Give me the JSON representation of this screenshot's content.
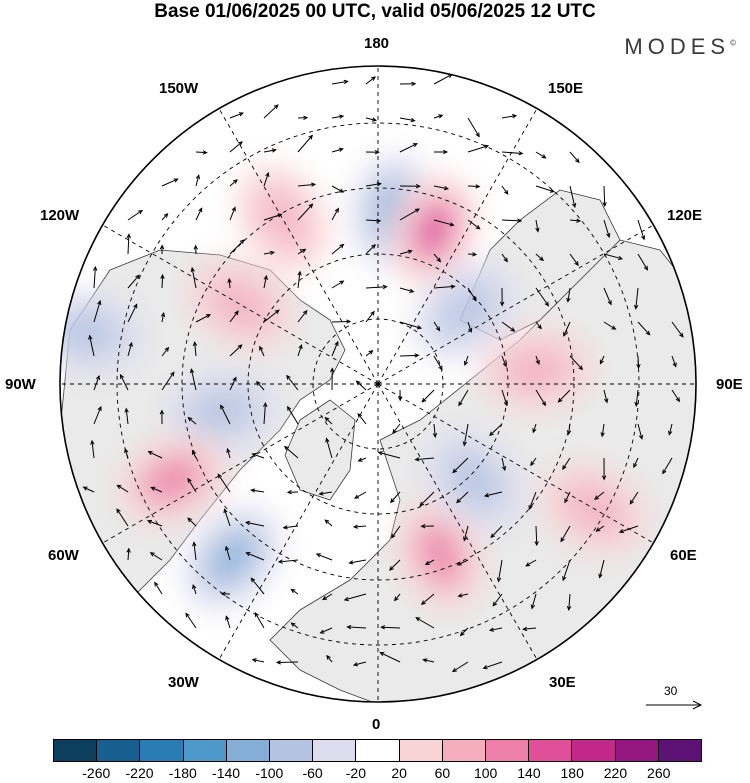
{
  "title": "Base 01/06/2025 00 UTC, valid 05/06/2025 12 UTC",
  "brand": "MODES",
  "brand_mark": "©",
  "longitude_labels": {
    "top": "180",
    "bottom": "0",
    "left": "90W",
    "right": "90E",
    "upper_left_inner": "150W",
    "upper_left_outer": "120W",
    "upper_right_inner": "150E",
    "upper_right_outer": "120E",
    "lower_left_outer": "60W",
    "lower_left_inner": "30W",
    "lower_right_outer": "60E",
    "lower_right_inner": "30E"
  },
  "reference_vector": {
    "value": "30"
  },
  "colorbar": {
    "colors": [
      "#0c3e5e",
      "#175f8e",
      "#2a7cb5",
      "#4e98c9",
      "#86afd8",
      "#b4c3e2",
      "#dcdcef",
      "#ffffff",
      "#f9d4d6",
      "#f4aebd",
      "#ee7fa8",
      "#e04f98",
      "#c2278a",
      "#941780",
      "#5e1174"
    ],
    "ticks": [
      "-260",
      "-220",
      "-180",
      "-140",
      "-100",
      "-60",
      "-20",
      "20",
      "60",
      "100",
      "140",
      "180",
      "220",
      "260"
    ]
  },
  "colors": {
    "land": "#eaeaea",
    "ocean": "#ffffff",
    "frame": "#000000"
  },
  "anomaly_blobs": [
    {
      "lon": 175,
      "lat": 52,
      "level": 2,
      "sign": -1
    },
    {
      "lon": 160,
      "lat": 54,
      "level": 3,
      "sign": 1
    },
    {
      "lon": -150,
      "lat": 48,
      "level": 1,
      "sign": 1
    },
    {
      "lon": -120,
      "lat": 55,
      "level": 1,
      "sign": 1
    },
    {
      "lon": -80,
      "lat": 55,
      "level": 1,
      "sign": -1
    },
    {
      "lon": -65,
      "lat": 40,
      "level": 2,
      "sign": 1
    },
    {
      "lon": -40,
      "lat": 40,
      "level": 2,
      "sign": -1
    },
    {
      "lon": 20,
      "lat": 50,
      "level": 2,
      "sign": 1
    },
    {
      "lon": 45,
      "lat": 60,
      "level": 1,
      "sign": -1
    },
    {
      "lon": 95,
      "lat": 55,
      "level": 1,
      "sign": 1
    },
    {
      "lon": 130,
      "lat": 65,
      "level": 1,
      "sign": -1
    },
    {
      "lon": -100,
      "lat": 25,
      "level": 1,
      "sign": -1
    },
    {
      "lon": 60,
      "lat": 35,
      "level": 1,
      "sign": 1
    }
  ]
}
